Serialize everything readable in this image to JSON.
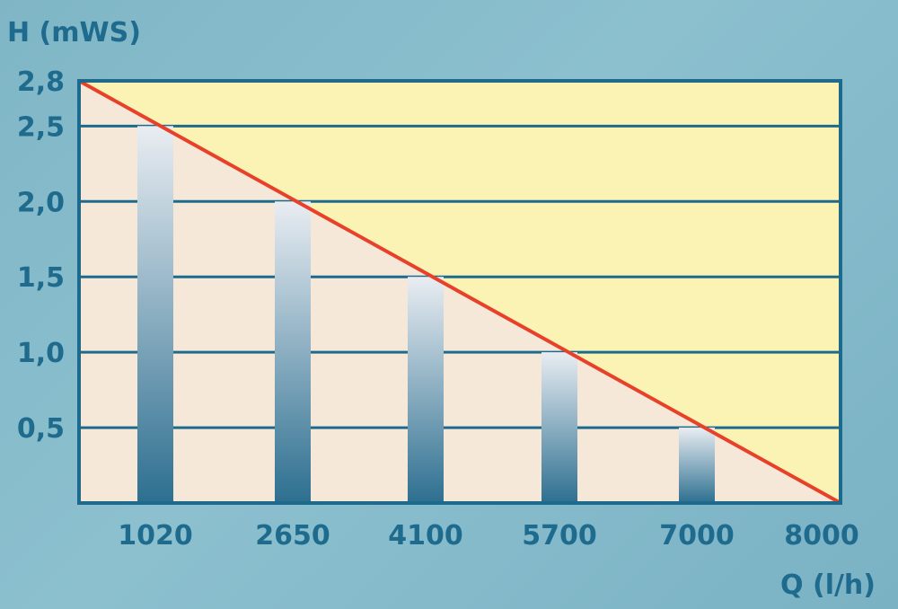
{
  "chart_data": {
    "type": "bar",
    "ylabel": "H (mWS)",
    "xlabel": "Q (l/h)",
    "ylim": [
      0,
      2.8
    ],
    "xlim": [
      0,
      8000
    ],
    "yticks": [
      {
        "value": 2.8,
        "label": "2,8"
      },
      {
        "value": 2.5,
        "label": "2,5"
      },
      {
        "value": 2.0,
        "label": "2,0"
      },
      {
        "value": 1.5,
        "label": "1,5"
      },
      {
        "value": 1.0,
        "label": "1,0"
      },
      {
        "value": 0.5,
        "label": "0,5"
      }
    ],
    "categories": [
      "1020",
      "2650",
      "4100",
      "5700",
      "7000",
      "8000"
    ],
    "values": [
      2.5,
      2.0,
      1.5,
      1.0,
      0.5,
      0
    ],
    "curve": {
      "from": [
        0,
        2.8
      ],
      "to": [
        8000,
        0
      ]
    },
    "grid": true,
    "colors": {
      "frame": "#1e6a8c",
      "gridline": "#1e6a8c",
      "area_above": "#fbf3b4",
      "area_below": "#f6e8d8",
      "curve": "#e8412a",
      "bar_top": "#e9edf2",
      "bar_bottom": "#2d6f90"
    }
  }
}
